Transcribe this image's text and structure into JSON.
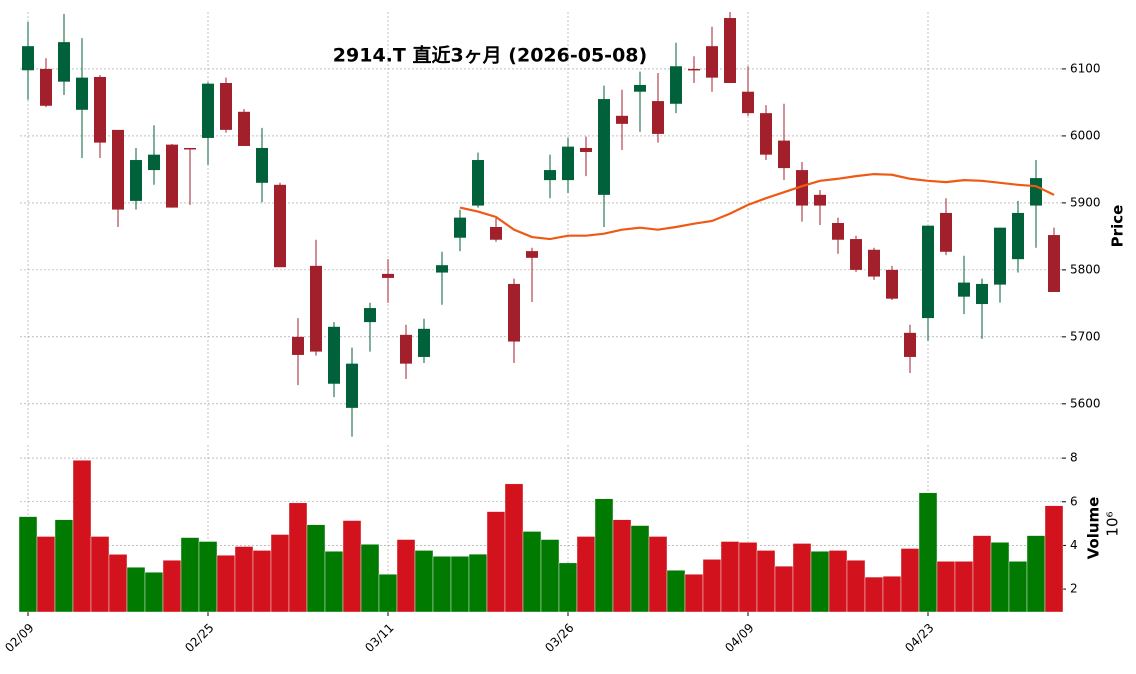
{
  "chart_data": {
    "type": "candlestick",
    "title": "2914.T  直近3ヶ月  (2026-05-08)",
    "categories": [
      "02/09",
      null,
      null,
      null,
      null,
      null,
      null,
      null,
      null,
      null,
      "02/25",
      null,
      null,
      null,
      null,
      null,
      null,
      null,
      null,
      null,
      "03/11",
      null,
      null,
      null,
      null,
      null,
      null,
      null,
      null,
      null,
      "03/26",
      null,
      null,
      null,
      null,
      null,
      null,
      null,
      null,
      null,
      "04/09",
      null,
      null,
      null,
      null,
      null,
      null,
      null,
      null,
      null,
      "04/23",
      null,
      null,
      null,
      null,
      null,
      null,
      null
    ],
    "open": [
      6098,
      6100,
      6081,
      6039,
      6088,
      6009,
      5903,
      5949,
      5987,
      5982,
      5997,
      6079,
      6036,
      5930,
      5927,
      5700,
      5806,
      5630,
      5594,
      5722,
      5794,
      5703,
      5670,
      5796,
      5848,
      5896,
      5864,
      5779,
      5828,
      5934,
      5934,
      5982,
      5912,
      6030,
      6066,
      6052,
      6048,
      6100,
      6134,
      6176,
      6066,
      6034,
      5993,
      5949,
      5912,
      5870,
      5846,
      5830,
      5800,
      5706,
      5728,
      5885,
      5760,
      5749,
      5778,
      5816,
      5896,
      5852
    ],
    "high": [
      6170,
      6116,
      6182,
      6146,
      6091,
      6009,
      5982,
      6016,
      5988,
      5982,
      6080,
      6087,
      6040,
      6012,
      5930,
      5728,
      5845,
      5722,
      5684,
      5751,
      5816,
      5718,
      5727,
      5827,
      5890,
      5975,
      5878,
      5787,
      5833,
      5972,
      5997,
      5999,
      6075,
      6069,
      6096,
      6094,
      6139,
      6119,
      6163,
      6185,
      6104,
      6046,
      6048,
      5961,
      5919,
      5878,
      5851,
      5833,
      5806,
      5718,
      5866,
      5907,
      5821,
      5787,
      5863,
      5903,
      5964,
      5863
    ],
    "low": [
      6054,
      6043,
      6061,
      5967,
      5967,
      5864,
      5890,
      5927,
      5893,
      5897,
      5957,
      6005,
      5985,
      5901,
      5804,
      5628,
      5672,
      5610,
      5551,
      5678,
      5751,
      5637,
      5661,
      5748,
      5828,
      5893,
      5842,
      5661,
      5752,
      5907,
      5915,
      5940,
      5864,
      5979,
      6006,
      5990,
      6034,
      6079,
      6066,
      6079,
      6030,
      5964,
      5934,
      5872,
      5867,
      5824,
      5797,
      5785,
      5755,
      5646,
      5694,
      5822,
      5734,
      5697,
      5751,
      5796,
      5833,
      5767
    ],
    "close": [
      6134,
      6045,
      6140,
      6087,
      5990,
      5890,
      5964,
      5972,
      5893,
      5980,
      6078,
      6009,
      5985,
      5982,
      5804,
      5673,
      5678,
      5715,
      5660,
      5743,
      5788,
      5660,
      5712,
      5807,
      5878,
      5964,
      5845,
      5693,
      5818,
      5949,
      5984,
      5976,
      6055,
      6018,
      6076,
      6003,
      6104,
      6098,
      6087,
      6079,
      6034,
      5972,
      5952,
      5896,
      5896,
      5845,
      5800,
      5790,
      5757,
      5670,
      5866,
      5827,
      5781,
      5779,
      5863,
      5885,
      5937,
      5767
    ],
    "up_color": "#00613a",
    "down_color": "#a1202b",
    "ma": {
      "color": "#ee5a14",
      "values": [
        null,
        null,
        null,
        null,
        null,
        null,
        null,
        null,
        null,
        null,
        null,
        null,
        null,
        null,
        null,
        null,
        null,
        null,
        null,
        null,
        null,
        null,
        null,
        null,
        5893,
        5887,
        5879,
        5860,
        5849,
        5846,
        5851,
        5851,
        5854,
        5860,
        5863,
        5860,
        5864,
        5869,
        5873,
        5884,
        5897,
        5907,
        5916,
        5925,
        5933,
        5936,
        5940,
        5943,
        5942,
        5936,
        5933,
        5931,
        5934,
        5933,
        5930,
        5927,
        5925,
        5912
      ]
    },
    "ylim": [
      5546,
      6185
    ],
    "yticks": [
      5600,
      5700,
      5800,
      5900,
      6000,
      6100
    ],
    "ylabel": "Price",
    "grid": true,
    "volume": {
      "values": [
        5.32,
        4.41,
        5.18,
        7.9,
        4.41,
        3.59,
        3.0,
        2.77,
        3.32,
        4.36,
        4.18,
        3.55,
        3.95,
        3.77,
        4.5,
        5.95,
        4.95,
        3.73,
        5.14,
        4.05,
        2.68,
        4.27,
        3.77,
        3.5,
        3.5,
        3.6,
        5.55,
        6.82,
        4.64,
        4.27,
        3.2,
        4.41,
        6.14,
        5.18,
        4.91,
        4.41,
        2.86,
        2.68,
        3.36,
        4.18,
        4.14,
        3.77,
        3.05,
        4.09,
        3.73,
        3.77,
        3.32,
        2.55,
        2.59,
        3.86,
        6.41,
        3.27,
        3.27,
        4.45,
        4.14,
        3.27,
        4.45,
        5.82
      ],
      "up_color": "#007a00",
      "down_color": "#d2121c",
      "ylim": [
        0.95,
        8.6
      ],
      "yticks": [
        2,
        4,
        6,
        8
      ],
      "ylabel": "Volume",
      "offset_label": "10⁶"
    }
  }
}
